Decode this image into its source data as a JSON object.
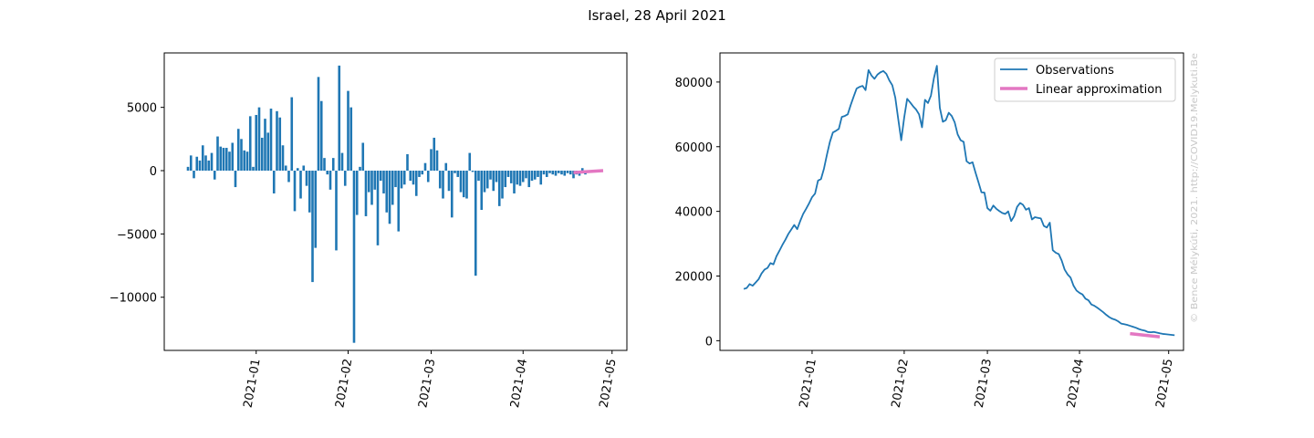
{
  "figure": {
    "title": "Israel, 28 April 2021",
    "watermark": "© Bence Mélykúti, 2021. http://COVID19.Melykuti.Be"
  },
  "colors": {
    "series": "#1f77b4",
    "approximation": "#e377c2"
  },
  "chart_data": [
    {
      "type": "bar",
      "title": "",
      "xlabel": "",
      "ylabel": "",
      "x_ticks": [
        "2021-01",
        "2021-02",
        "2021-03",
        "2021-04",
        "2021-05"
      ],
      "x_tick_dates": [
        "2021-01-01",
        "2021-02-01",
        "2021-03-01",
        "2021-04-01",
        "2021-05-01"
      ],
      "y_ticks": [
        5000,
        0,
        -5000,
        -10000
      ],
      "y_tick_labels": [
        "5000",
        "0",
        "−5000",
        "−10000"
      ],
      "xlim": [
        "2020-12-01",
        "2021-05-06"
      ],
      "ylim": [
        -14200,
        9300
      ],
      "grid": false,
      "series": [
        {
          "type": "bar",
          "start_date": "2020-12-09",
          "values": [
            300,
            1200,
            -600,
            1100,
            800,
            2000,
            1200,
            800,
            1400,
            -700,
            2700,
            1900,
            1800,
            1800,
            1500,
            2200,
            -1300,
            3300,
            2500,
            1600,
            1500,
            4300,
            300,
            4400,
            5000,
            2600,
            4100,
            3000,
            4900,
            -1800,
            4700,
            4200,
            2000,
            400,
            -900,
            5800,
            -3200,
            200,
            -2200,
            400,
            -1200,
            -3300,
            -8800,
            -6100,
            7400,
            5500,
            1000,
            -300,
            -1500,
            1000,
            -6300,
            8300,
            1400,
            -1200,
            6300,
            5000,
            -13600,
            -3500,
            300,
            2200,
            -3600,
            -1700,
            -2700,
            -1500,
            -5900,
            -800,
            -1800,
            -3300,
            -4200,
            -2700,
            -1300,
            -4800,
            -1400,
            -1100,
            1300,
            -800,
            -1100,
            -2000,
            -500,
            -300,
            600,
            -900,
            1700,
            2600,
            1600,
            -1400,
            -2200,
            600,
            -1600,
            -3700,
            -200,
            -500,
            -1700,
            -2100,
            -2200,
            1400,
            -100,
            -8300,
            -800,
            -3100,
            -1700,
            -1400,
            -700,
            -1600,
            -900,
            -2800,
            -2200,
            -1300,
            -500,
            -1000,
            -1800,
            -1100,
            -1200,
            -900,
            -600,
            -1300,
            -800,
            -700,
            -500,
            -1100,
            -300,
            -500,
            -200,
            -300,
            -400,
            -200,
            -300,
            -400,
            -200,
            -300,
            -600,
            -300,
            -400,
            200,
            -300
          ]
        },
        {
          "name": "Linear approximation",
          "type": "line",
          "x": [
            "2021-04-18",
            "2021-04-28"
          ],
          "y": [
            -150,
            0
          ]
        }
      ]
    },
    {
      "type": "line",
      "title": "",
      "xlabel": "",
      "ylabel": "",
      "x_ticks": [
        "2021-01",
        "2021-02",
        "2021-03",
        "2021-04",
        "2021-05"
      ],
      "x_tick_dates": [
        "2021-01-01",
        "2021-02-01",
        "2021-03-01",
        "2021-04-01",
        "2021-05-01"
      ],
      "y_ticks": [
        0,
        20000,
        40000,
        60000,
        80000
      ],
      "y_tick_labels": [
        "0",
        "20000",
        "40000",
        "60000",
        "80000"
      ],
      "xlim": [
        "2020-12-01",
        "2021-05-06"
      ],
      "ylim": [
        -3000,
        89000
      ],
      "grid": false,
      "legend": {
        "placement": "top-right",
        "entries": [
          "Observations",
          "Linear approximation"
        ]
      },
      "series": [
        {
          "name": "Observations",
          "start_date": "2020-12-09",
          "values": [
            16000,
            16300,
            17500,
            17000,
            18000,
            19000,
            20800,
            22000,
            22500,
            24000,
            23600,
            26100,
            27800,
            29600,
            31200,
            33000,
            34400,
            35800,
            34500,
            37000,
            39200,
            40800,
            42500,
            44400,
            45500,
            49500,
            50000,
            53200,
            57500,
            61500,
            64400,
            64900,
            65500,
            69200,
            69500,
            70000,
            72900,
            75500,
            78000,
            78500,
            78800,
            77500,
            83700,
            82000,
            81000,
            82300,
            83000,
            83400,
            82500,
            80500,
            79000,
            75200,
            68500,
            62000,
            69000,
            74800,
            73700,
            72500,
            71500,
            70000,
            66000,
            74500,
            73500,
            75800,
            81200,
            85000,
            72000,
            67700,
            68200,
            70500,
            69500,
            67500,
            63800,
            62000,
            61500,
            55500,
            54800,
            55200,
            52000,
            49000,
            45900,
            45800,
            41000,
            40200,
            41800,
            40800,
            40100,
            39500,
            39200,
            40000,
            37000,
            38500,
            41400,
            42600,
            42000,
            40500,
            41000,
            37500,
            38200,
            38000,
            37800,
            35500,
            35000,
            36500,
            28000,
            27200,
            26800,
            24800,
            22000,
            20500,
            19500,
            17000,
            15500,
            14800,
            14300,
            13000,
            12500,
            11200,
            10800,
            10200,
            9500,
            8800,
            8000,
            7300,
            6800,
            6500,
            6000,
            5300,
            5100,
            4900,
            4600,
            4300,
            4000,
            3600,
            3300,
            3100,
            2700,
            2600,
            2700,
            2500,
            2300,
            2100,
            2000,
            1900,
            1800,
            1700
          ]
        },
        {
          "name": "Linear approximation",
          "x": [
            "2021-04-18",
            "2021-04-28"
          ],
          "y": [
            2200,
            1200
          ]
        }
      ]
    }
  ]
}
